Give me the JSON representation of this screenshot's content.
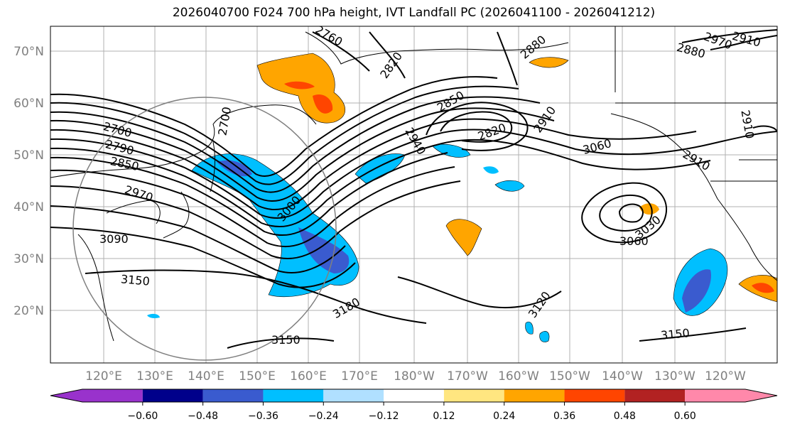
{
  "title": "2026040700 F024 700 hPa height, IVT Landfall PC (2026041100 - 2026041212)",
  "map": {
    "lat_labels": [
      "70°N",
      "60°N",
      "50°N",
      "40°N",
      "30°N",
      "20°N"
    ],
    "lon_labels": [
      "120°E",
      "130°E",
      "140°E",
      "150°E",
      "160°E",
      "170°E",
      "180°W",
      "170°W",
      "160°W",
      "150°W",
      "140°W",
      "130°W",
      "120°W"
    ],
    "contour_labels": [
      "2760",
      "2820",
      "2880",
      "2880",
      "2850",
      "2700",
      "2790",
      "2850",
      "2970",
      "3090",
      "3150",
      "3150",
      "3180",
      "3120",
      "3150",
      "3060",
      "3030",
      "3060",
      "2910",
      "2940",
      "2820",
      "2910",
      "3000",
      "2910",
      "2970",
      "2910",
      "2700"
    ],
    "shading_colors": {
      "neg_strong": "#3a5bcf",
      "neg_mid": "#00bfff",
      "neg_weak": "#b0e0ff",
      "pos_weak": "#ffe680",
      "pos_mid": "#ffa500",
      "pos_strong": "#ff4500",
      "pos_max": "#b22222"
    }
  },
  "colorbar": {
    "colors": [
      "#9932cc",
      "#00008b",
      "#3a5bcf",
      "#00bfff",
      "#b0e0ff",
      "#ffffff",
      "#ffe680",
      "#ffa500",
      "#ff4500",
      "#b22222",
      "#ff88aa"
    ],
    "ticks": [
      "−0.60",
      "−0.48",
      "−0.36",
      "−0.24",
      "−0.12",
      "0.12",
      "0.24",
      "0.36",
      "0.48",
      "0.60"
    ]
  }
}
